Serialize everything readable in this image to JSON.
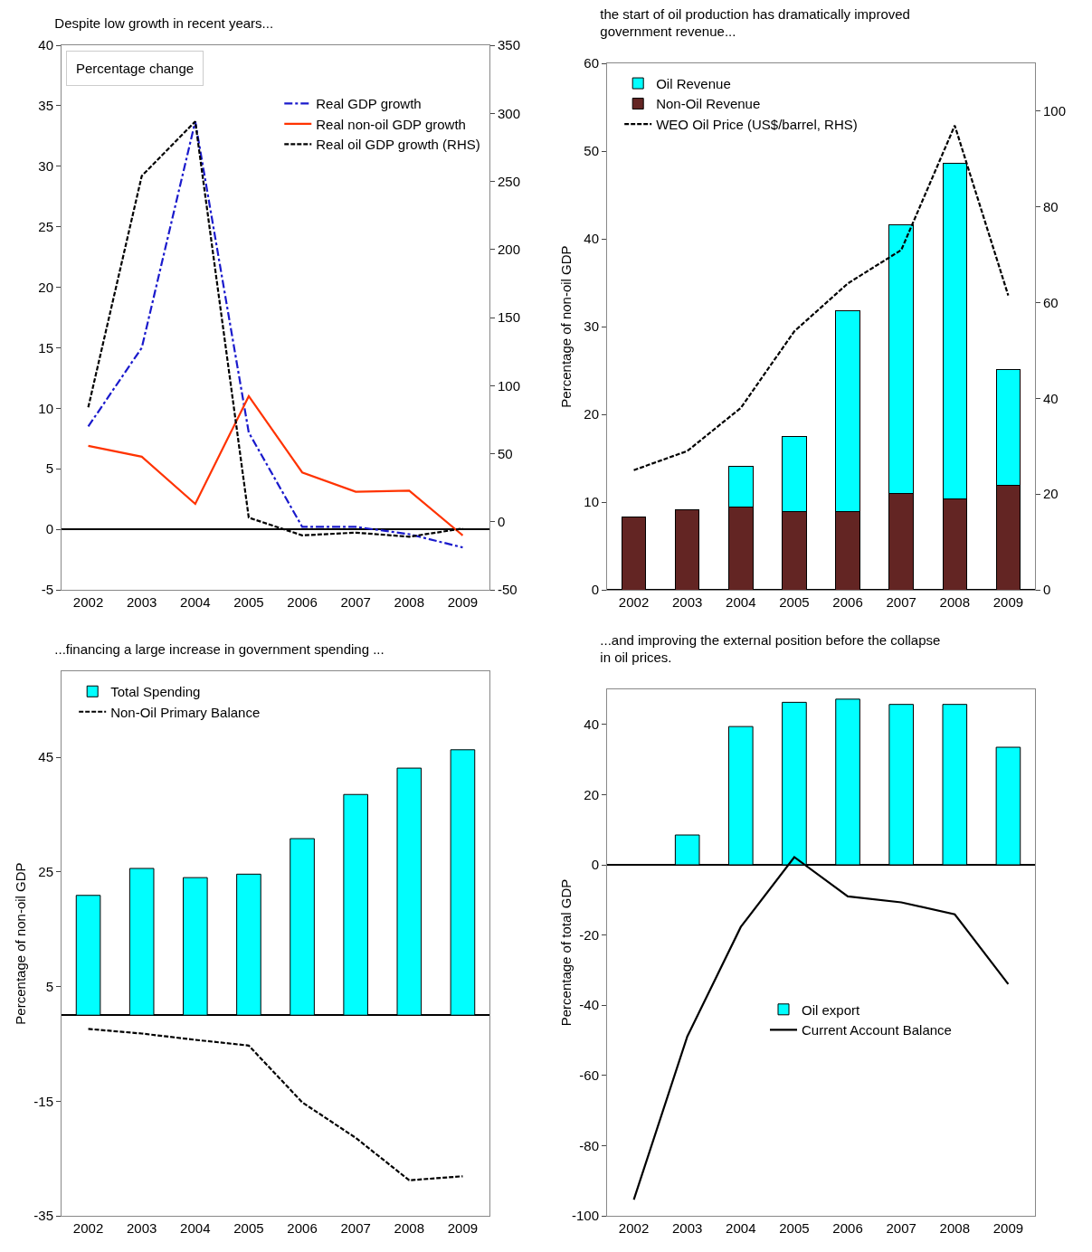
{
  "chart_data": [
    {
      "type": "line",
      "title": "Despite low growth in recent years...",
      "categories": [
        "2002",
        "2003",
        "2004",
        "2005",
        "2006",
        "2007",
        "2008",
        "2009"
      ],
      "series": [
        {
          "name": "Real GDP growth",
          "color": "#1a1acc",
          "line_style": "dashdot",
          "values": [
            8.5,
            15,
            33.7,
            8,
            0.2,
            0.2,
            -0.4,
            -1.5
          ]
        },
        {
          "name": "Real non-oil GDP growth",
          "color": "#ff3300",
          "line_style": "solid",
          "values": [
            6.9,
            6.0,
            2.1,
            11,
            4.7,
            3.1,
            3.2,
            -0.5
          ]
        },
        {
          "name": "Real oil GDP growth (RHS)",
          "color": "#000000",
          "line_style": "dashed",
          "axis": "y2",
          "values": [
            84,
            254,
            294,
            3,
            -10,
            -8,
            -11,
            -5
          ]
        }
      ],
      "ylim": [
        -5,
        40
      ],
      "yticks": [
        -5,
        0,
        5,
        10,
        15,
        20,
        25,
        30,
        35,
        40
      ],
      "y2lim": [
        -50,
        350
      ],
      "y2ticks": [
        -50,
        0,
        50,
        100,
        150,
        200,
        250,
        300,
        350
      ],
      "legend": "top right",
      "annotations": [
        "Percentage change"
      ]
    },
    {
      "type": "bar",
      "title": "the start of oil production has dramatically improved government revenue...",
      "ylabel": "Percentage of non-oil GDP",
      "categories": [
        "2002",
        "2003",
        "2004",
        "2005",
        "2006",
        "2007",
        "2008",
        "2009"
      ],
      "stacked": true,
      "series": [
        {
          "name": "Non-Oil Revenue",
          "color": "#632523",
          "values": [
            8.3,
            9.1,
            9.4,
            8.9,
            8.9,
            11.0,
            10.4,
            11.9
          ]
        },
        {
          "name": "Oil Revenue",
          "color": "#00ffff",
          "values": [
            null,
            null,
            4.7,
            8.6,
            22.9,
            30.6,
            38.2,
            13.2
          ]
        },
        {
          "name": "WEO Oil Price (US$/barrel, RHS)",
          "type": "line",
          "color": "#000000",
          "line_style": "dashed",
          "axis": "y2",
          "values": [
            25,
            29,
            38,
            54,
            64,
            71,
            97,
            61.5
          ]
        }
      ],
      "ylim": [
        0,
        60
      ],
      "yticks": [
        0,
        10,
        20,
        30,
        40,
        50,
        60
      ],
      "y2lim": [
        0,
        110
      ],
      "y2ticks": [
        0,
        20,
        40,
        60,
        80,
        100
      ],
      "legend": "top left"
    },
    {
      "type": "bar",
      "title": "...financing a large increase in government spending ...",
      "ylabel": "Percentage of non-oil GDP",
      "categories": [
        "2002",
        "2003",
        "2004",
        "2005",
        "2006",
        "2007",
        "2008",
        "2009"
      ],
      "series": [
        {
          "name": "Total Spending",
          "color": "#00ffff",
          "values": [
            20.9,
            25.6,
            24.0,
            24.6,
            30.8,
            38.5,
            43.1,
            46.3
          ]
        },
        {
          "name": "Non-Oil Primary Balance",
          "type": "line",
          "color": "#000000",
          "line_style": "dashed",
          "values": [
            -2.4,
            -3.2,
            -4.3,
            -5.3,
            -15.2,
            -21.4,
            -28.8,
            -28.1
          ]
        }
      ],
      "ylim": [
        -35,
        60
      ],
      "yticks": [
        -35,
        -15,
        5,
        25,
        45
      ],
      "legend": "top left"
    },
    {
      "type": "bar",
      "title": "...and improving the external position before the collapse in oil prices.",
      "ylabel": "Percentage of total GDP",
      "categories": [
        "2002",
        "2003",
        "2004",
        "2005",
        "2006",
        "2007",
        "2008",
        "2009"
      ],
      "series": [
        {
          "name": "Oil export",
          "color": "#00ffff",
          "values": [
            null,
            8.5,
            39.4,
            46.3,
            47.2,
            45.7,
            45.7,
            33.5
          ]
        },
        {
          "name": "Current Account Balance",
          "type": "line",
          "color": "#000000",
          "line_style": "solid",
          "values": [
            -95.4,
            -48.9,
            -17.7,
            2.2,
            -9.0,
            -10.7,
            -14.1,
            -34.0
          ]
        }
      ],
      "ylim": [
        -100,
        50
      ],
      "yticks": [
        -100,
        -80,
        -60,
        -40,
        -20,
        0,
        20,
        40
      ],
      "legend": "center"
    }
  ]
}
